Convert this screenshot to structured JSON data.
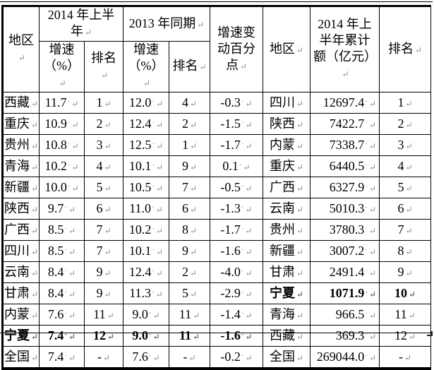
{
  "marks": {
    "paragraph": "↵",
    "space": "·"
  },
  "table": {
    "header": {
      "region_left": "地区",
      "group_2014": "2014 年上半年",
      "group_2013": "2013 年同期",
      "growth_2014": "增速（%）",
      "rank_2014": "排名",
      "growth_2013": "增速（%）",
      "rank_2013": "排名",
      "change": "增速变动百分点",
      "region_right": "地区",
      "amount": "2014 年上半年累计额（亿元）",
      "rank_right": "排名"
    },
    "rows": [
      {
        "cells": [
          "西藏",
          "11.7",
          "1",
          "12.0",
          "4",
          "-0.3",
          "四川",
          "12697.4",
          "1"
        ],
        "bold_left": false,
        "bold_right": false
      },
      {
        "cells": [
          "重庆",
          "10.9",
          "2",
          "12.4",
          "2",
          "-1.5",
          "陕西",
          "7422.7",
          "2"
        ],
        "bold_left": false,
        "bold_right": false
      },
      {
        "cells": [
          "贵州",
          "10.8",
          "3",
          "12.5",
          "1",
          "-1.7",
          "内蒙",
          "7338.7",
          "3"
        ],
        "bold_left": false,
        "bold_right": false
      },
      {
        "cells": [
          "青海",
          "10.2",
          "4",
          "10.1",
          "9",
          "0.1",
          "重庆",
          "6440.5",
          "4"
        ],
        "bold_left": false,
        "bold_right": false
      },
      {
        "cells": [
          "新疆",
          "10.0",
          "5",
          "10.5",
          "7",
          "-0.5",
          "广西",
          "6327.9",
          "5"
        ],
        "bold_left": false,
        "bold_right": false
      },
      {
        "cells": [
          "陕西",
          "9.7",
          "6",
          "11.0",
          "6",
          "-1.3",
          "云南",
          "5010.3",
          "6"
        ],
        "bold_left": false,
        "bold_right": false
      },
      {
        "cells": [
          "广西",
          "8.5",
          "7",
          "10.2",
          "8",
          "-1.7",
          "贵州",
          "3780.3",
          "7"
        ],
        "bold_left": false,
        "bold_right": false
      },
      {
        "cells": [
          "四川",
          "8.5",
          "7",
          "10.1",
          "9",
          "-1.6",
          "新疆",
          "3007.2",
          "8"
        ],
        "bold_left": false,
        "bold_right": false
      },
      {
        "cells": [
          "云南",
          "8.4",
          "9",
          "12.4",
          "2",
          "-4.0",
          "甘肃",
          "2491.4",
          "9"
        ],
        "bold_left": false,
        "bold_right": false
      },
      {
        "cells": [
          "甘肃",
          "8.4",
          "9",
          "11.3",
          "5",
          "-2.9",
          "宁夏",
          "1071.9",
          "10"
        ],
        "bold_left": false,
        "bold_right": true
      },
      {
        "cells": [
          "内蒙",
          "7.6",
          "11",
          "9.0",
          "11",
          "-1.4",
          "青海",
          "966.5",
          "11"
        ],
        "bold_left": false,
        "bold_right": false
      },
      {
        "cells": [
          "宁夏",
          "7.4",
          "12",
          "9.0",
          "11",
          "-1.6",
          "西藏",
          "369.3",
          "12"
        ],
        "bold_left": true,
        "bold_right": false
      },
      {
        "cells": [
          "全国",
          "7.4",
          "-",
          "7.6",
          "-",
          "-0.2",
          "全国",
          "269044.0",
          "-"
        ],
        "bold_left": false,
        "bold_right": false
      }
    ]
  }
}
